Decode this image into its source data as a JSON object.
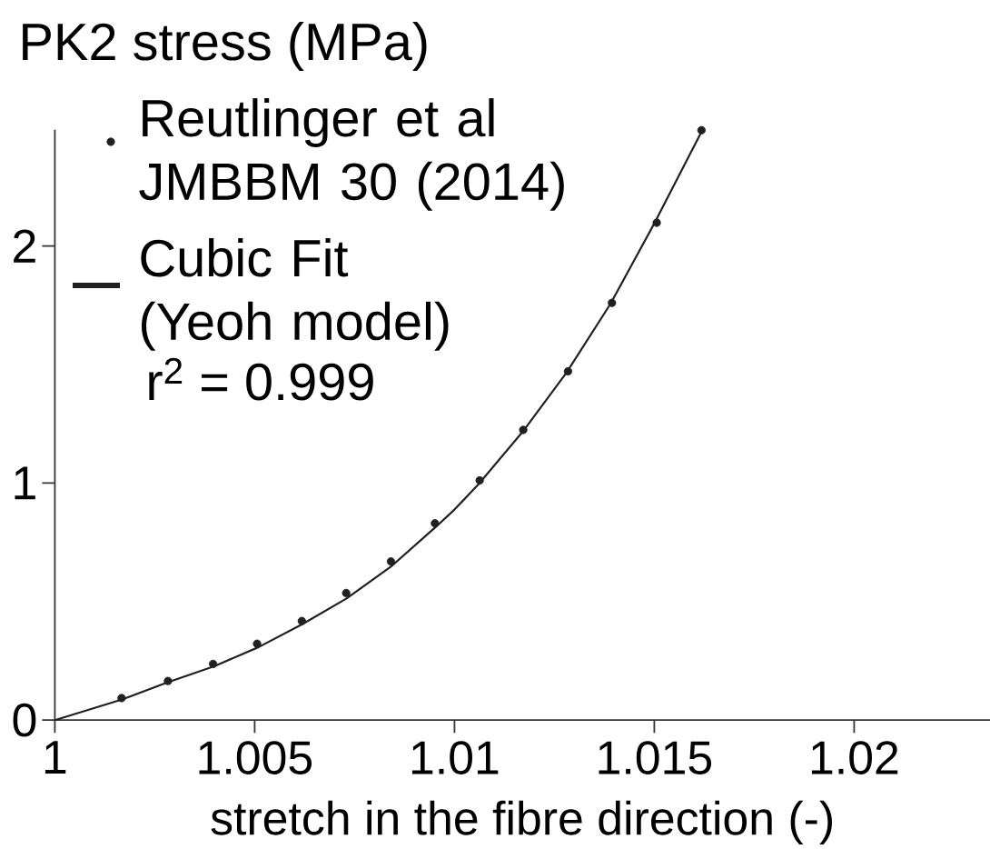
{
  "chart_data": {
    "type": "scatter",
    "xlabel": "stretch in the fibre direction (-)",
    "ylabel": "PK2 stress (MPa)",
    "xlim": [
      1,
      1.0234
    ],
    "ylim": [
      0,
      2.49
    ],
    "xticks": [
      1,
      1.005,
      1.01,
      1.015,
      1.02
    ],
    "yticks": [
      0,
      1,
      2
    ],
    "legend": "top left",
    "grid": false,
    "marker": "circle",
    "series": [
      {
        "name": "Reutlinger et al JMBBM 30 (2014)",
        "color": "#231f20",
        "x": [
          1.00167,
          1.00283,
          1.00396,
          1.00506,
          1.00618,
          1.00729,
          1.00841,
          1.00951,
          1.01063,
          1.01172,
          1.01284,
          1.01394,
          1.01506,
          1.01618
        ],
        "values": [
          0.093,
          0.165,
          0.237,
          0.322,
          0.418,
          0.536,
          0.669,
          0.83,
          1.011,
          1.224,
          1.471,
          1.76,
          2.098,
          2.488
        ]
      },
      {
        "name": "Cubic Fit (Yeoh model)",
        "type": "line",
        "marker": "none",
        "line_style": "solid",
        "color": "#231f20",
        "x": [
          1,
          1.0017,
          1.0028,
          1.004,
          1.0051,
          1.0062,
          1.0073,
          1.0084,
          1.0095,
          1.01,
          1.0106,
          1.0117,
          1.0128,
          1.0139,
          1.015,
          1.0162
        ],
        "values": [
          0,
          0.088,
          0.158,
          0.228,
          0.308,
          0.405,
          0.513,
          0.646,
          0.81,
          0.888,
          0.995,
          1.215,
          1.465,
          1.755,
          2.095,
          2.488
        ]
      }
    ],
    "annotations": [
      "r$^{2}$ = 0.999"
    ]
  }
}
